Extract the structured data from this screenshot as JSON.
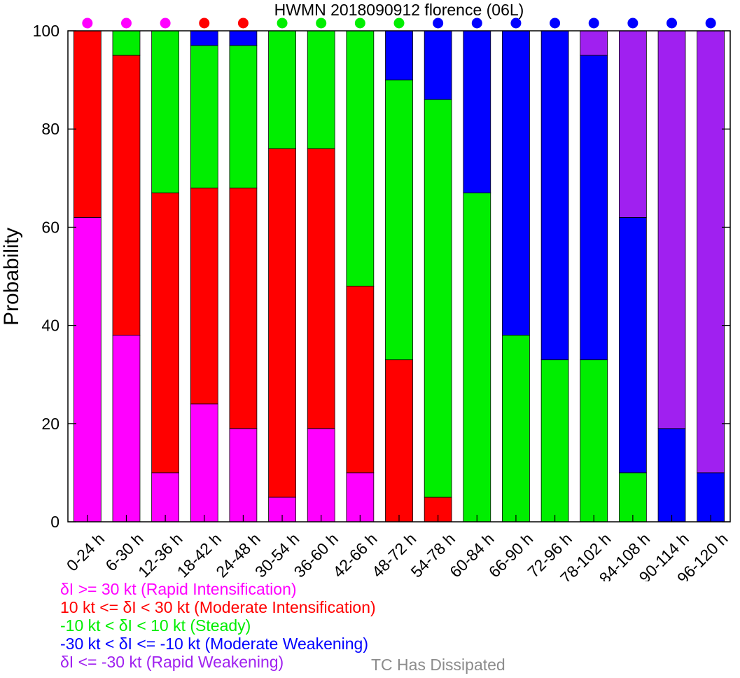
{
  "chart_data": {
    "type": "bar",
    "stacked": true,
    "title": "HWMN 2018090912 florence (06L)",
    "xlabel": "",
    "ylabel": "Probability",
    "ylim": [
      0,
      100
    ],
    "yticks": [
      "0",
      "20",
      "40",
      "60",
      "80",
      "100"
    ],
    "categories": [
      "0-24 h",
      "6-30 h",
      "12-36 h",
      "18-42 h",
      "24-48 h",
      "30-54 h",
      "36-60 h",
      "42-66 h",
      "48-72 h",
      "54-78 h",
      "60-84 h",
      "66-90 h",
      "72-96 h",
      "78-102 h",
      "84-108 h",
      "90-114 h",
      "96-120 h"
    ],
    "series": [
      {
        "key": "ri",
        "color": "#ff00ff",
        "values": [
          62,
          38,
          10,
          24,
          19,
          5,
          19,
          10,
          0,
          0,
          0,
          0,
          0,
          0,
          0,
          0,
          0
        ]
      },
      {
        "key": "mi",
        "color": "#ff0000",
        "values": [
          38,
          57,
          57,
          44,
          49,
          71,
          57,
          38,
          33,
          5,
          0,
          0,
          0,
          0,
          0,
          0,
          0
        ]
      },
      {
        "key": "st",
        "color": "#00ee00",
        "values": [
          0,
          5,
          33,
          29,
          29,
          24,
          24,
          52,
          57,
          81,
          67,
          38,
          33,
          33,
          10,
          0,
          0
        ]
      },
      {
        "key": "mw",
        "color": "#0000ff",
        "values": [
          0,
          0,
          0,
          3,
          3,
          0,
          0,
          0,
          10,
          14,
          33,
          62,
          67,
          62,
          52,
          19,
          10
        ]
      },
      {
        "key": "rw",
        "color": "#a020f0",
        "values": [
          0,
          0,
          0,
          0,
          0,
          0,
          0,
          0,
          0,
          0,
          0,
          0,
          0,
          5,
          38,
          81,
          90
        ]
      }
    ],
    "top_markers": [
      "ri",
      "ri",
      "ri",
      "mi",
      "mi",
      "st",
      "st",
      "st",
      "st",
      "mw",
      "mw",
      "mw",
      "mw",
      "mw",
      "mw",
      "mw",
      "mw"
    ],
    "grid": false
  },
  "legend": [
    {
      "text": "δI >= 30 kt (Rapid Intensification)",
      "color": "#ff00ff"
    },
    {
      "text": "10 kt <= δI < 30 kt (Moderate Intensification)",
      "color": "#ff0000"
    },
    {
      "text": "-10 kt < δI < 10 kt (Steady)",
      "color": "#00ee00"
    },
    {
      "text": "-30 kt < δI <= -10 kt (Moderate Weakening)",
      "color": "#0000ff"
    },
    {
      "text": "δI <= -30 kt (Rapid Weakening)",
      "color": "#a020f0"
    }
  ],
  "dissipated_label": "TC Has Dissipated",
  "dissipated_color": "#8c8c8c"
}
